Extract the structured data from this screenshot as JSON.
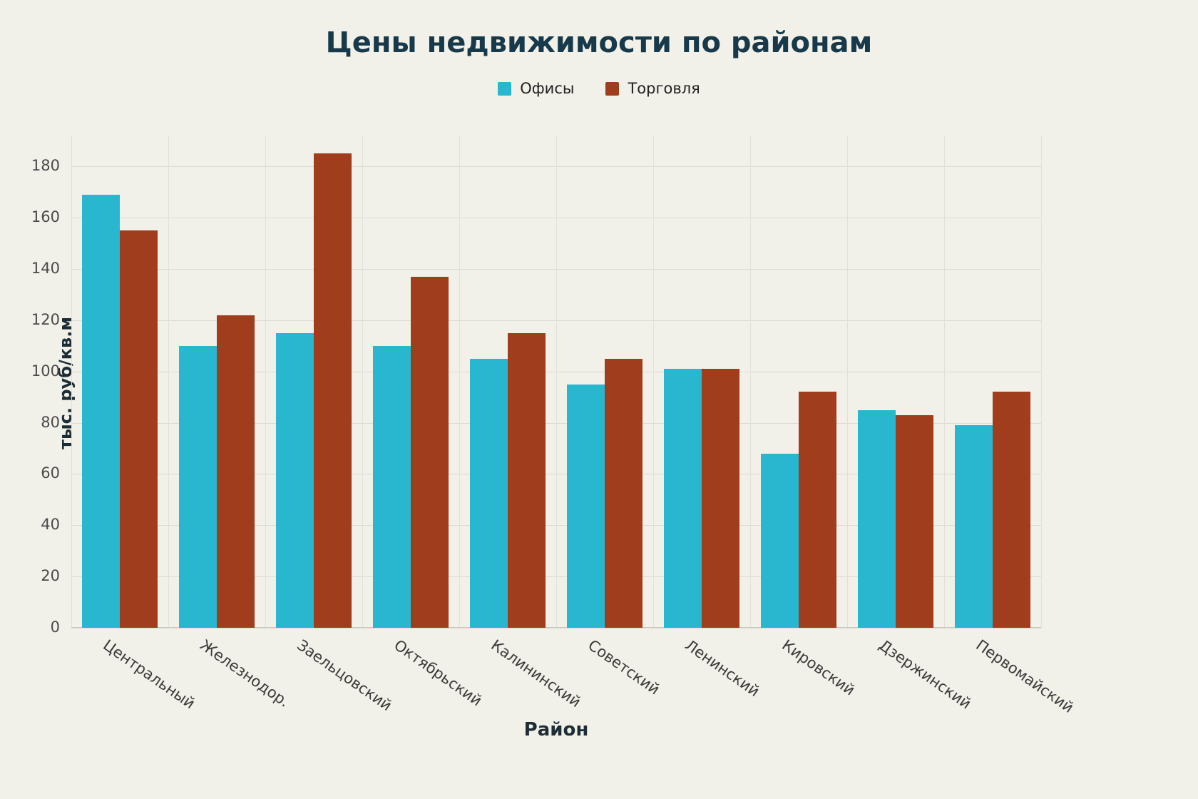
{
  "chart_data": {
    "type": "bar",
    "title": "Цены недвижимости по районам",
    "xlabel": "Район",
    "ylabel": "тыс. руб/кв.м",
    "categories": [
      "Центральный",
      "Железнодор.",
      "Заельцовский",
      "Октябрьский",
      "Калининский",
      "Советский",
      "Ленинский",
      "Кировский",
      "Дзержинский",
      "Первомайский"
    ],
    "series": [
      {
        "name": "Офисы",
        "color": "#28b7cf",
        "values": [
          169,
          110,
          115,
          110,
          105,
          95,
          101,
          68,
          85,
          79
        ]
      },
      {
        "name": "Торговля",
        "color": "#a03d1c",
        "values": [
          155,
          122,
          185,
          137,
          115,
          105,
          101,
          92,
          83,
          92
        ]
      }
    ],
    "yticks": [
      0,
      20,
      40,
      60,
      80,
      100,
      120,
      140,
      160,
      180
    ],
    "ylim": [
      0,
      192
    ],
    "grid": true,
    "legend_position": "top-center",
    "background_color": "#f1f0e9",
    "gridline_color": "#dcdad1"
  }
}
